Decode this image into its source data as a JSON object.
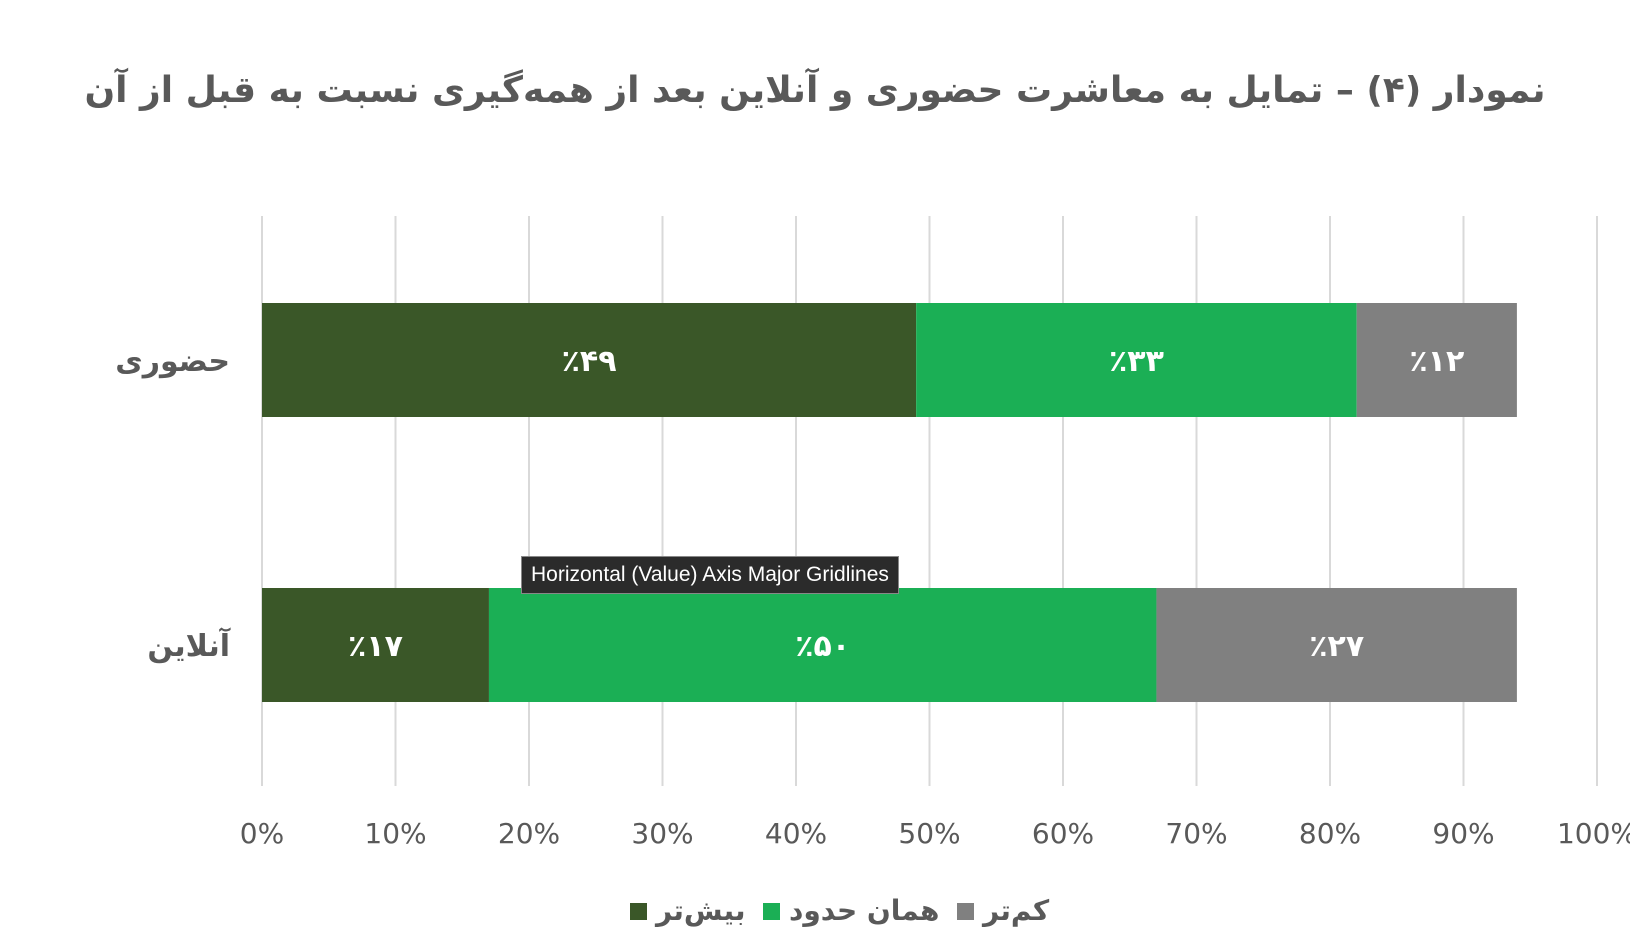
{
  "chart_data": {
    "type": "bar",
    "orientation": "horizontal",
    "stacked": true,
    "title": "نمودار (۴) – تمایل به معاشرت حضوری و آنلاین بعد از همه‌گیری نسبت به قبل از آن",
    "categories": [
      "حضوری",
      "آنلاین"
    ],
    "series": [
      {
        "name": "بیش‌تر",
        "color": "#3A5728",
        "values": [
          49,
          17
        ],
        "labels": [
          "٪۴۹",
          "٪۱۷"
        ]
      },
      {
        "name": "همان حدود",
        "color": "#1BAF55",
        "values": [
          33,
          50
        ],
        "labels": [
          "٪۳۳",
          "٪۵۰"
        ]
      },
      {
        "name": "کم‌تر",
        "color": "#808080",
        "values": [
          12,
          27
        ],
        "labels": [
          "٪۱۲",
          "٪۲۷"
        ]
      }
    ],
    "xlim": [
      0,
      100
    ],
    "xticks": [
      "0%",
      "10%",
      "20%",
      "30%",
      "40%",
      "50%",
      "60%",
      "70%",
      "80%",
      "90%",
      "100%"
    ],
    "grid": true,
    "legend_position": "bottom",
    "legend_order": [
      2,
      1,
      0
    ]
  },
  "tooltip": {
    "text": "Horizontal (Value) Axis Major Gridlines"
  }
}
